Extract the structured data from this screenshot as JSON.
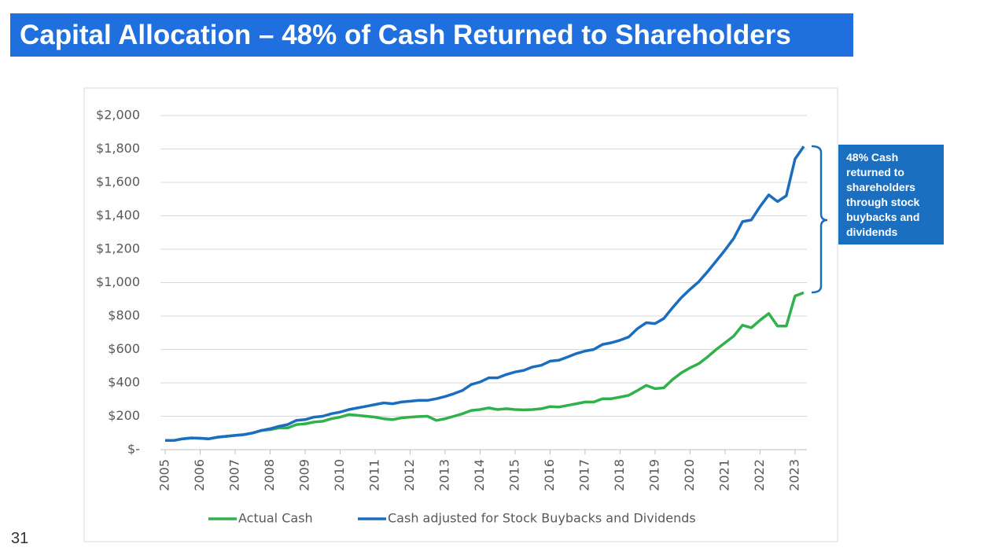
{
  "page_number": "31",
  "chart_data": {
    "type": "line",
    "title": "Capital Allocation – 48% of Cash Returned to Shareholders",
    "annotation": "48% Cash returned to shareholders through stock buybacks and dividends",
    "x": [
      2005,
      2005.25,
      2005.5,
      2005.75,
      2006,
      2006.25,
      2006.5,
      2006.75,
      2007,
      2007.25,
      2007.5,
      2007.75,
      2008,
      2008.25,
      2008.5,
      2008.75,
      2009,
      2009.25,
      2009.5,
      2009.75,
      2010,
      2010.25,
      2010.5,
      2010.75,
      2011,
      2011.25,
      2011.5,
      2011.75,
      2012,
      2012.25,
      2012.5,
      2012.75,
      2013,
      2013.25,
      2013.5,
      2013.75,
      2014,
      2014.25,
      2014.5,
      2014.75,
      2015,
      2015.25,
      2015.5,
      2015.75,
      2016,
      2016.25,
      2016.5,
      2016.75,
      2017,
      2017.25,
      2017.5,
      2017.75,
      2018,
      2018.25,
      2018.5,
      2018.75,
      2019,
      2019.25,
      2019.5,
      2019.75,
      2020,
      2020.25,
      2020.5,
      2020.75,
      2021,
      2021.25,
      2021.5,
      2021.75,
      2022,
      2022.25,
      2022.5,
      2022.75,
      2023,
      2023.25
    ],
    "series": [
      {
        "name": "Actual Cash",
        "color": "#2fb14b",
        "values": [
          55,
          55,
          65,
          70,
          68,
          65,
          75,
          80,
          85,
          90,
          100,
          115,
          120,
          130,
          130,
          150,
          155,
          165,
          170,
          185,
          195,
          210,
          205,
          200,
          195,
          185,
          180,
          190,
          195,
          198,
          200,
          175,
          185,
          200,
          215,
          235,
          240,
          250,
          240,
          245,
          240,
          238,
          240,
          245,
          258,
          255,
          265,
          275,
          285,
          285,
          305,
          305,
          315,
          325,
          355,
          385,
          365,
          370,
          420,
          460,
          490,
          515,
          555,
          600,
          640,
          680,
          745,
          730,
          775,
          815,
          740,
          740,
          920,
          940
        ]
      },
      {
        "name": "Cash adjusted for Stock Buybacks and Dividends",
        "color": "#1b6ebf",
        "values": [
          55,
          55,
          65,
          70,
          68,
          65,
          75,
          80,
          85,
          90,
          100,
          115,
          125,
          140,
          150,
          175,
          180,
          195,
          200,
          215,
          225,
          240,
          250,
          260,
          270,
          280,
          275,
          285,
          290,
          295,
          295,
          305,
          318,
          335,
          355,
          390,
          405,
          430,
          430,
          450,
          465,
          475,
          495,
          505,
          530,
          535,
          555,
          575,
          590,
          600,
          630,
          640,
          655,
          675,
          725,
          760,
          755,
          785,
          850,
          910,
          960,
          1005,
          1065,
          1130,
          1195,
          1265,
          1365,
          1375,
          1455,
          1525,
          1485,
          1520,
          1740,
          1815
        ]
      }
    ],
    "xlim": [
      2005,
      2023.25
    ],
    "xticks": [
      2005,
      2006,
      2007,
      2008,
      2009,
      2010,
      2011,
      2012,
      2013,
      2014,
      2015,
      2016,
      2017,
      2018,
      2019,
      2020,
      2021,
      2022,
      2023
    ],
    "ylim": [
      0,
      2000
    ],
    "yticks": [
      {
        "value": 0,
        "label": "$-"
      },
      {
        "value": 200,
        "label": "$200"
      },
      {
        "value": 400,
        "label": "$400"
      },
      {
        "value": 600,
        "label": "$600"
      },
      {
        "value": 800,
        "label": "$800"
      },
      {
        "value": 1000,
        "label": "$1,000"
      },
      {
        "value": 1200,
        "label": "$1,200"
      },
      {
        "value": 1400,
        "label": "$1,400"
      },
      {
        "value": 1600,
        "label": "$1,600"
      },
      {
        "value": 1800,
        "label": "$1,800"
      },
      {
        "value": 2000,
        "label": "$2,000"
      }
    ],
    "grid": true,
    "legend": "bottom"
  }
}
